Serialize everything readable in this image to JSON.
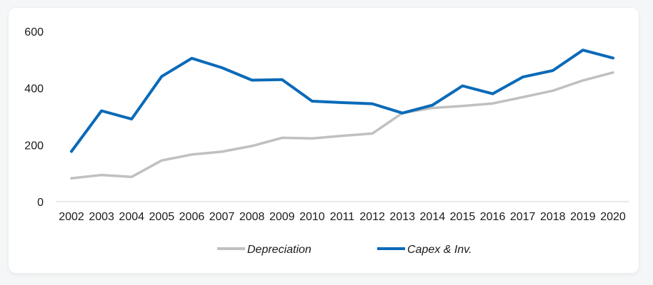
{
  "chart_data": {
    "type": "line",
    "title": "",
    "xlabel": "",
    "ylabel": "",
    "categories": [
      "2002",
      "2003",
      "2004",
      "2005",
      "2006",
      "2007",
      "2008",
      "2009",
      "2010",
      "2011",
      "2012",
      "2013",
      "2014",
      "2015",
      "2016",
      "2017",
      "2018",
      "2019",
      "2020"
    ],
    "ylim": [
      0,
      600
    ],
    "yticks": [
      0,
      200,
      400,
      600
    ],
    "grid": false,
    "legend_position": "bottom",
    "series": [
      {
        "name": "Depreciation",
        "color": "#c0c0c0",
        "values": [
          82,
          94,
          87,
          145,
          166,
          176,
          196,
          225,
          223,
          232,
          240,
          312,
          330,
          337,
          346,
          368,
          391,
          427,
          455
        ]
      },
      {
        "name": "Capex & Inv.",
        "color": "#0a6ab8",
        "values": [
          177,
          320,
          291,
          441,
          505,
          472,
          428,
          430,
          354,
          349,
          345,
          312,
          340,
          408,
          380,
          439,
          462,
          534,
          506
        ]
      }
    ]
  }
}
